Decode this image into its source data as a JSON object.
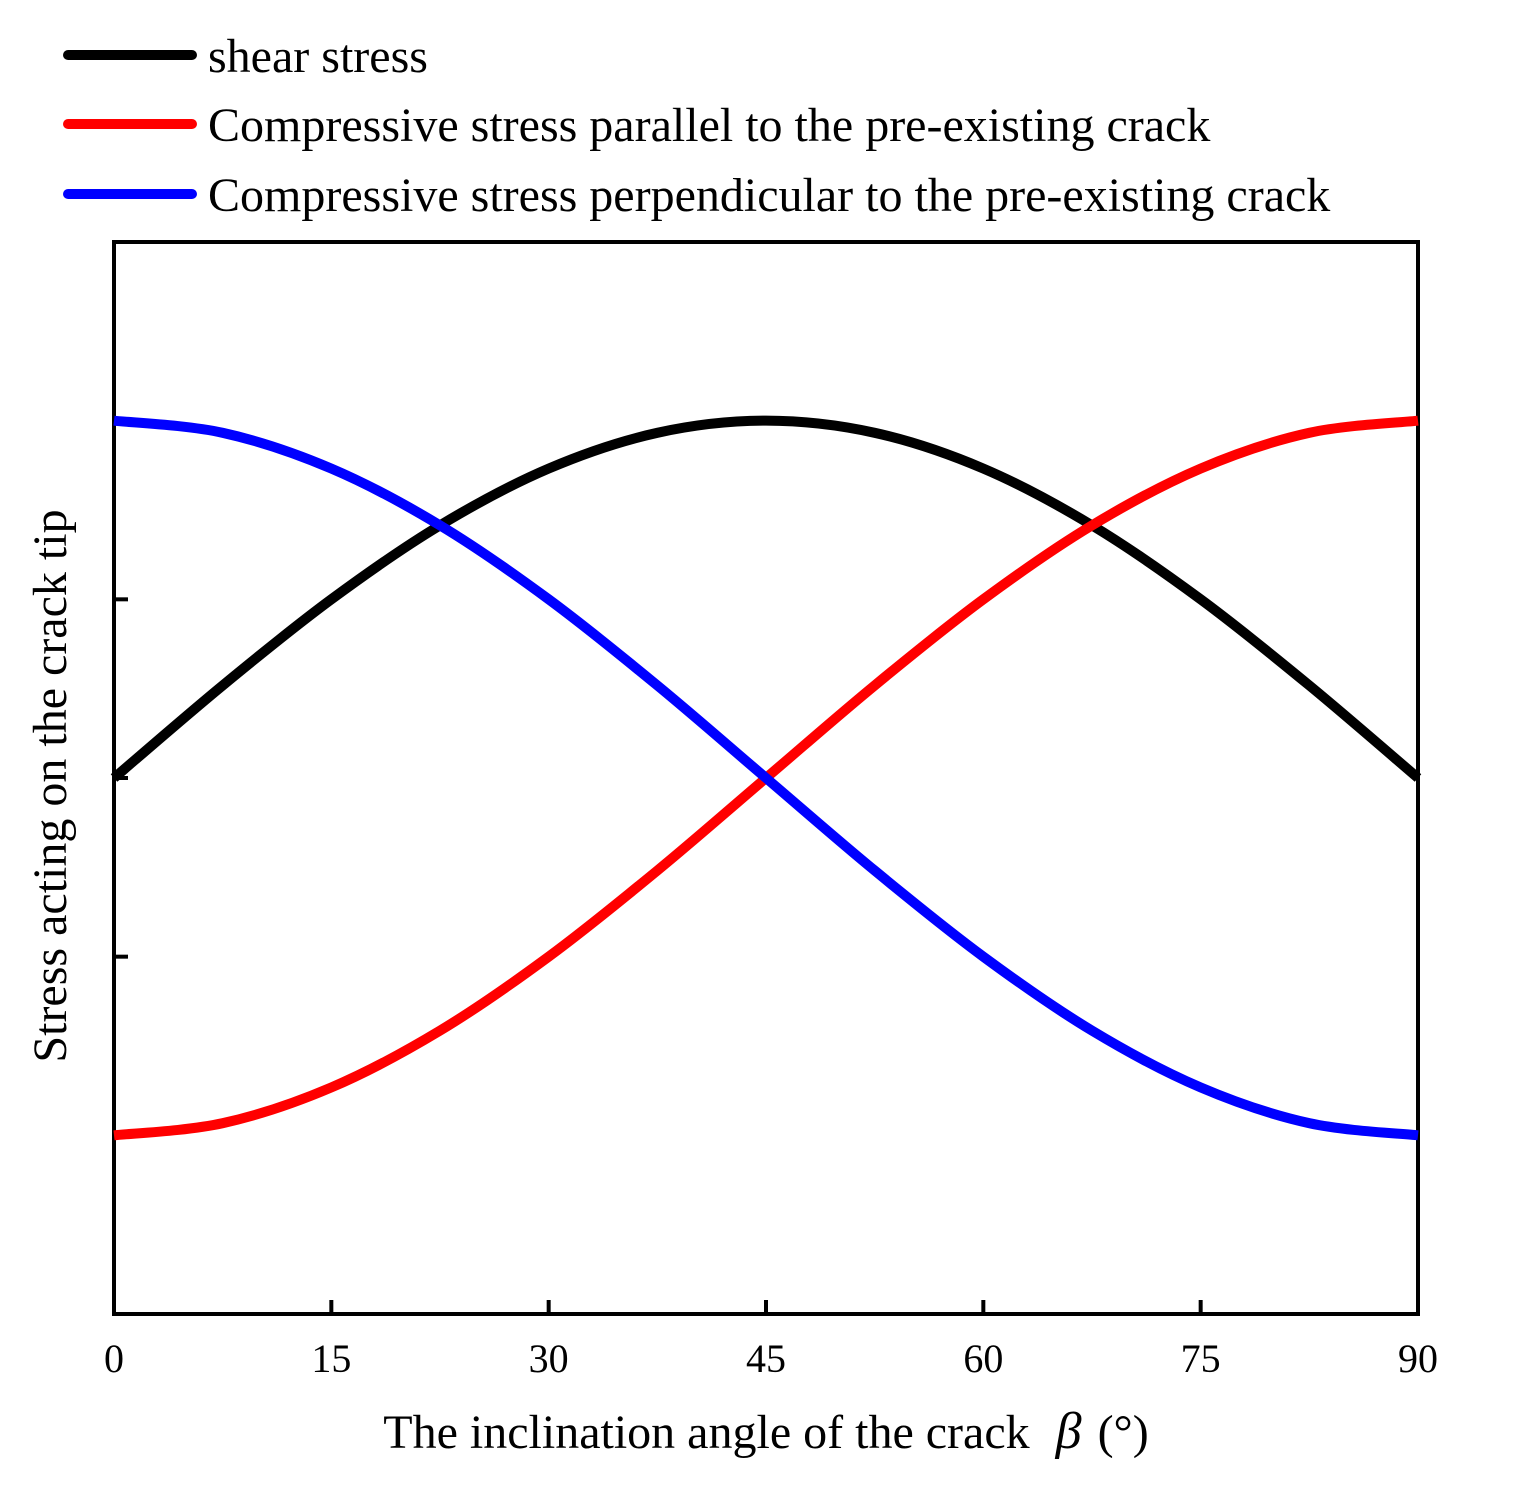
{
  "chart_data": {
    "type": "line",
    "title": "",
    "xlabel": "The inclination angle of the crack",
    "xlabel_symbol": "β",
    "xlabel_unit": "(°)",
    "ylabel": "Stress acting on the crack tip",
    "xlim": [
      0,
      90
    ],
    "ylim": [
      -1.5,
      1.5
    ],
    "x_ticks": [
      0,
      15,
      30,
      45,
      60,
      75,
      90
    ],
    "x_tick_labels": [
      "0",
      "15",
      "30",
      "45",
      "60",
      "75",
      "90"
    ],
    "y_ticks": [
      -0.5,
      0,
      0.5
    ],
    "y_tick_labels": [],
    "grid": false,
    "legend_position": "top-left, outside plot",
    "series": [
      {
        "name": "shear stress",
        "color": "#000000",
        "x": [
          0,
          7.5,
          15,
          22.5,
          30,
          37.5,
          45,
          52.5,
          60,
          67.5,
          75,
          82.5,
          90
        ],
        "y": [
          0,
          0.259,
          0.5,
          0.707,
          0.866,
          0.966,
          1.0,
          0.966,
          0.866,
          0.707,
          0.5,
          0.259,
          0
        ]
      },
      {
        "name": "Compressive stress parallel to the pre-existing crack",
        "color": "#ff0000",
        "x": [
          0,
          7.5,
          15,
          22.5,
          30,
          37.5,
          45,
          52.5,
          60,
          67.5,
          75,
          82.5,
          90
        ],
        "y": [
          -1.0,
          -0.966,
          -0.866,
          -0.707,
          -0.5,
          -0.259,
          0,
          0.259,
          0.5,
          0.707,
          0.866,
          0.966,
          1.0
        ]
      },
      {
        "name": "Compressive stress perpendicular to the pre-existing crack",
        "color": "#0000ff",
        "x": [
          0,
          7.5,
          15,
          22.5,
          30,
          37.5,
          45,
          52.5,
          60,
          67.5,
          75,
          82.5,
          90
        ],
        "y": [
          1.0,
          0.966,
          0.866,
          0.707,
          0.5,
          0.259,
          0,
          -0.259,
          -0.5,
          -0.707,
          -0.866,
          -0.966,
          -1.0
        ]
      }
    ]
  }
}
